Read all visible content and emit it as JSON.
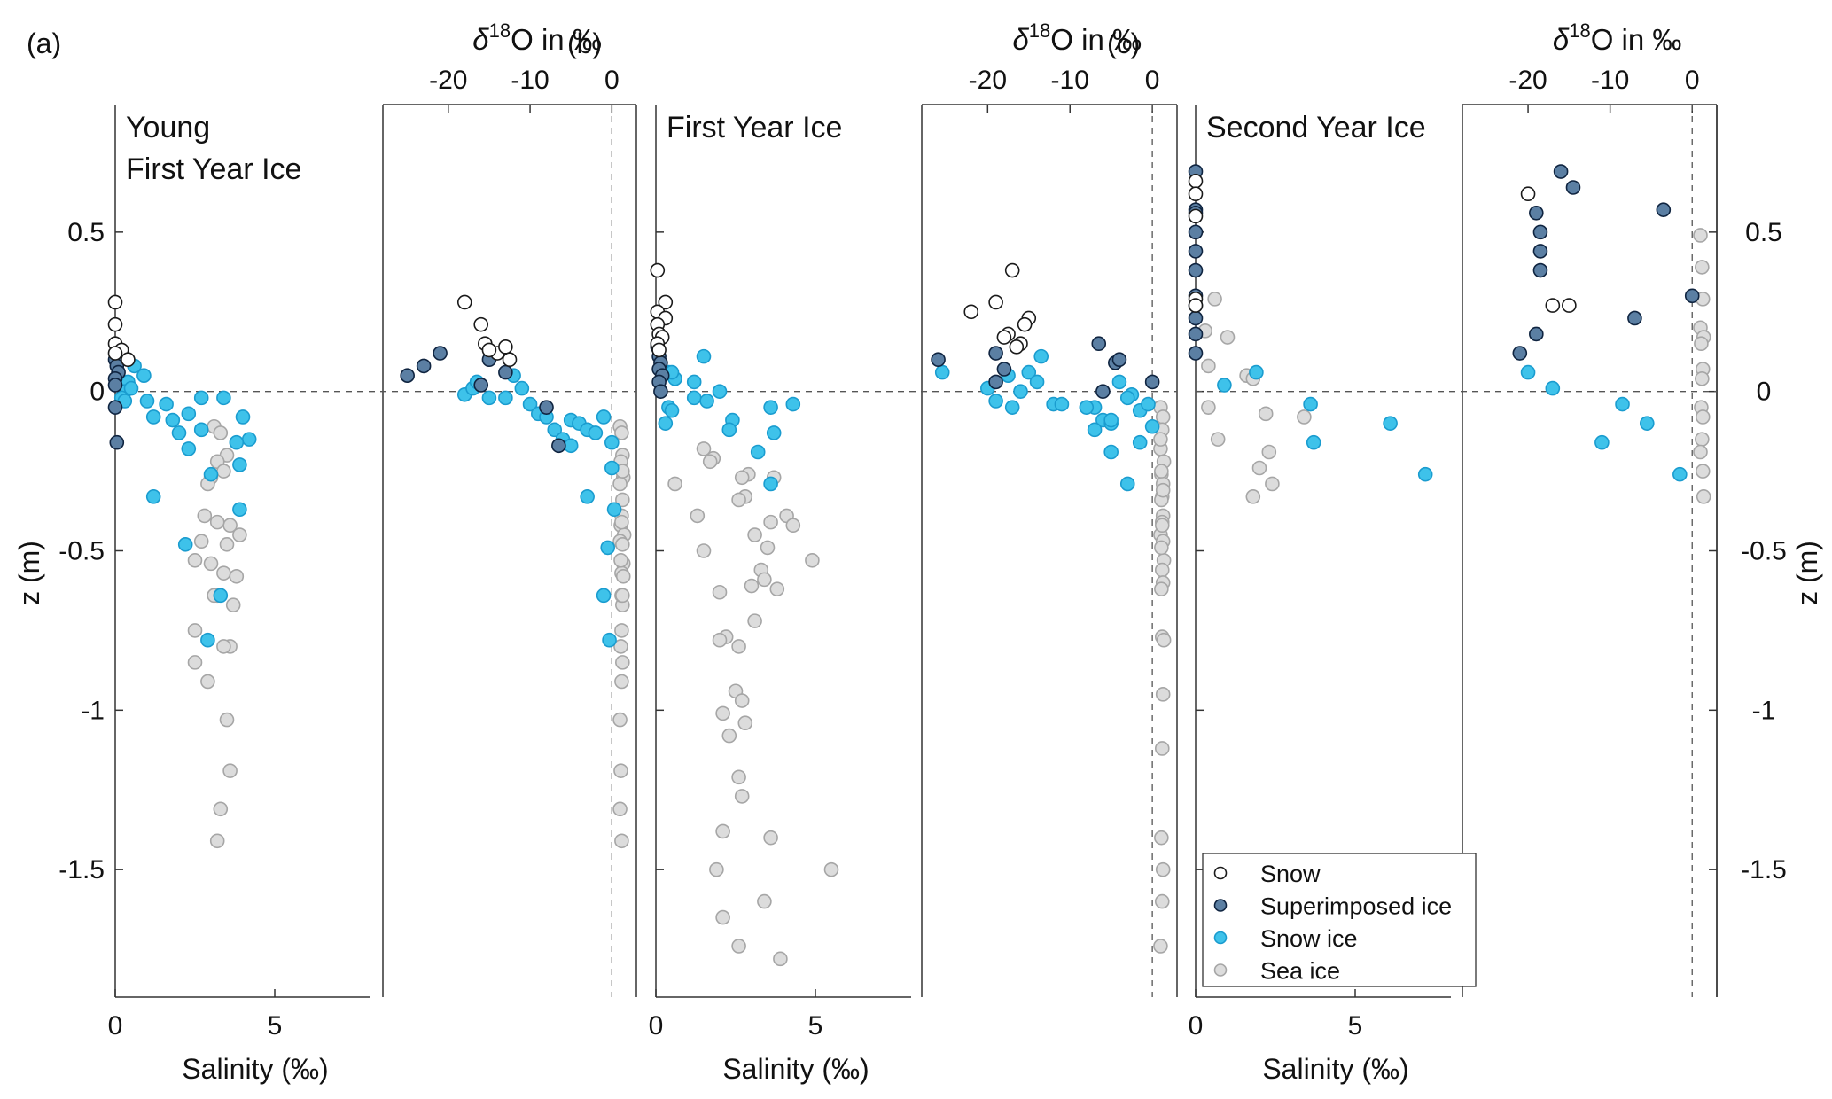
{
  "figure": {
    "colors": {
      "Snow": "#ffffff",
      "Superimposed ice": "#5b7fa3",
      "Snow ice": "#3ec2ea",
      "Sea ice": "#dcdcdc",
      "marker_edge_snow": "#1a1a1a",
      "marker_edge_sup": "#0f2440",
      "marker_edge_snowice": "#1a9ccf",
      "marker_edge_sea": "#a6a6a6",
      "axis": "#333333",
      "dashed": "#555555"
    },
    "z_axis": {
      "label": "z (m)",
      "range": [
        -1.9,
        0.9
      ],
      "ticks": [
        0.5,
        0,
        -0.5,
        -1,
        -1.5
      ],
      "tick_labels": [
        "0.5",
        "0",
        "-0.5",
        "-1",
        "-1.5"
      ]
    },
    "salinity_axis": {
      "label": "Salinity (‰)",
      "range": [
        0,
        8
      ],
      "ticks": [
        0,
        5
      ],
      "tick_labels": [
        "0",
        "5"
      ]
    },
    "d18o_axis": {
      "label_prefix": "δ",
      "label_sup": "18",
      "label_suffix": "O in ‰",
      "range": [
        -28,
        3
      ],
      "ticks": [
        -20,
        -10,
        0
      ],
      "tick_labels": [
        "-20",
        "-10",
        "0"
      ]
    },
    "legend": {
      "entries": [
        "Snow",
        "Superimposed ice",
        "Snow ice",
        "Sea ice"
      ]
    }
  },
  "panels": [
    {
      "letter": "(a)",
      "title_lines": [
        "Young",
        "First Year Ice"
      ]
    },
    {
      "letter": "(b)",
      "title_lines": [
        "First Year Ice"
      ]
    },
    {
      "letter": "(c)",
      "title_lines": [
        "Second Year Ice"
      ]
    }
  ],
  "chart_data": [
    {
      "type": "scatter",
      "panel": "(a)",
      "title": "Young First Year Ice",
      "xlabel": "Salinity (‰)",
      "ylabel": "z (m)",
      "xlim": [
        0,
        8
      ],
      "ylim": [
        -1.9,
        0.9
      ],
      "series": [
        {
          "name": "Snow",
          "x": [
            0.0,
            0.0,
            0.0,
            0.2,
            0.4,
            0.0
          ],
          "y": [
            0.28,
            0.21,
            0.15,
            0.13,
            0.1,
            0.12
          ]
        },
        {
          "name": "Superimposed ice",
          "x": [
            0.0,
            0.05,
            0.1,
            0.0,
            0.0,
            0.0,
            0.05
          ],
          "y": [
            0.1,
            0.08,
            0.06,
            0.04,
            0.02,
            -0.05,
            -0.16
          ]
        },
        {
          "name": "Snow ice",
          "x": [
            0.6,
            0.9,
            0.4,
            0.3,
            0.2,
            0.5,
            0.3,
            1.0,
            1.2,
            1.6,
            1.8,
            2.0,
            2.3,
            2.3,
            2.7,
            2.7,
            3.4,
            4.0,
            4.2,
            3.8,
            3.9,
            3.0,
            1.2,
            2.2,
            2.9,
            3.3,
            3.9
          ],
          "y": [
            0.08,
            0.05,
            0.03,
            0.0,
            -0.02,
            0.01,
            -0.03,
            -0.03,
            -0.08,
            -0.04,
            -0.09,
            -0.13,
            -0.07,
            -0.18,
            -0.02,
            -0.12,
            -0.02,
            -0.08,
            -0.15,
            -0.16,
            -0.23,
            -0.26,
            -0.33,
            -0.48,
            -0.78,
            -0.64,
            -0.37
          ]
        },
        {
          "name": "Sea ice",
          "x": [
            3.1,
            3.3,
            3.5,
            3.2,
            3.0,
            2.9,
            3.4,
            2.8,
            3.6,
            3.9,
            3.2,
            2.7,
            3.5,
            3.0,
            3.4,
            3.7,
            2.5,
            3.2,
            3.8,
            3.1,
            2.5,
            3.6,
            2.5,
            2.9,
            3.4,
            3.5,
            3.6,
            3.3,
            3.2
          ],
          "y": [
            -0.11,
            -0.13,
            -0.2,
            -0.22,
            -0.27,
            -0.29,
            -0.25,
            -0.39,
            -0.42,
            -0.45,
            -0.41,
            -0.47,
            -0.48,
            -0.54,
            -0.57,
            -0.67,
            -0.53,
            -0.64,
            -0.58,
            -0.64,
            -0.75,
            -0.8,
            -0.85,
            -0.91,
            -0.8,
            -1.03,
            -1.19,
            -1.31,
            -1.41
          ]
        }
      ]
    },
    {
      "type": "scatter",
      "panel": "(a)",
      "title": "Young First Year Ice",
      "xlabel": "δ18O in ‰",
      "ylabel": "z (m)",
      "xlim": [
        -28,
        3
      ],
      "ylim": [
        -1.9,
        0.9
      ],
      "series": [
        {
          "name": "Snow",
          "x": [
            -18,
            -16,
            -15.5,
            -14,
            -13,
            -12.5,
            -15
          ],
          "y": [
            0.28,
            0.21,
            0.15,
            0.12,
            0.14,
            0.1,
            0.13
          ]
        },
        {
          "name": "Superimposed ice",
          "x": [
            -25,
            -23,
            -21,
            -16,
            -15,
            -13,
            -8,
            -6.5
          ],
          "y": [
            0.05,
            0.08,
            0.12,
            0.02,
            0.1,
            0.06,
            -0.05,
            -0.17
          ]
        },
        {
          "name": "Snow ice",
          "x": [
            -18,
            -17,
            -16.5,
            -15,
            -13,
            -12,
            -11,
            -10,
            -9,
            -8,
            -7,
            -6,
            -5,
            -5,
            -4,
            -3,
            -2,
            -1,
            0,
            0,
            -0.5,
            -3,
            -1,
            0.3,
            -0.3
          ],
          "y": [
            -0.01,
            0.01,
            0.03,
            -0.02,
            -0.02,
            0.05,
            0.01,
            -0.04,
            -0.07,
            -0.08,
            -0.12,
            -0.15,
            -0.17,
            -0.09,
            -0.1,
            -0.12,
            -0.13,
            -0.08,
            -0.16,
            -0.24,
            -0.49,
            -0.33,
            -0.64,
            -0.37,
            -0.78
          ]
        },
        {
          "name": "Sea ice",
          "x": [
            1,
            1.2,
            1.3,
            1.1,
            1.4,
            1,
            1.3,
            1.2,
            1.1,
            1.5,
            1.2,
            1.0,
            1.3,
            1.4,
            1.2,
            1.3,
            1.1,
            1.2,
            1.4,
            1.3,
            1.2,
            1.1,
            1.3,
            1.2,
            1.0,
            1.1,
            1.0,
            1.2,
            1.3
          ],
          "y": [
            -0.11,
            -0.13,
            -0.2,
            -0.22,
            -0.27,
            -0.29,
            -0.25,
            -0.39,
            -0.42,
            -0.45,
            -0.41,
            -0.47,
            -0.48,
            -0.54,
            -0.57,
            -0.67,
            -0.53,
            -0.64,
            -0.58,
            -0.64,
            -0.75,
            -0.8,
            -0.85,
            -0.91,
            -1.03,
            -1.19,
            -1.31,
            -1.41,
            -0.34
          ]
        }
      ]
    },
    {
      "type": "scatter",
      "panel": "(b)",
      "title": "First Year Ice",
      "xlabel": "Salinity (‰)",
      "ylabel": "z (m)",
      "xlim": [
        0,
        8
      ],
      "ylim": [
        -1.9,
        0.9
      ],
      "series": [
        {
          "name": "Snow",
          "x": [
            0.05,
            0.3,
            0.05,
            0.3,
            0.05,
            0.1,
            0.2,
            0.05,
            0.1
          ],
          "y": [
            0.38,
            0.28,
            0.25,
            0.23,
            0.21,
            0.18,
            0.17,
            0.15,
            0.13
          ]
        },
        {
          "name": "Superimposed ice",
          "x": [
            0.05,
            0.1,
            0.15,
            0.1,
            0.2,
            0.1,
            0.15
          ],
          "y": [
            0.14,
            0.11,
            0.09,
            0.07,
            0.05,
            0.03,
            0.0
          ]
        },
        {
          "name": "Snow ice",
          "x": [
            0.4,
            0.6,
            0.5,
            1.2,
            1.5,
            1.2,
            2.0,
            0.4,
            0.5,
            0.3,
            1.6,
            2.4,
            2.3,
            3.6,
            3.2,
            4.3,
            3.6,
            3.7
          ],
          "y": [
            0.06,
            0.04,
            0.06,
            0.03,
            0.11,
            -0.02,
            0.0,
            -0.05,
            -0.06,
            -0.1,
            -0.03,
            -0.09,
            -0.12,
            -0.05,
            -0.19,
            -0.04,
            -0.29,
            -0.13
          ]
        },
        {
          "name": "Sea ice",
          "x": [
            1.5,
            1.8,
            1.7,
            0.6,
            2.9,
            2.7,
            2.8,
            3.7,
            2.6,
            1.3,
            3.6,
            4.1,
            4.3,
            3.1,
            1.5,
            3.5,
            3.3,
            4.9,
            3.4,
            3.0,
            3.8,
            2.0,
            3.1,
            2.2,
            2.0,
            2.6,
            2.5,
            2.7,
            2.8,
            2.1,
            2.3,
            2.6,
            2.7,
            2.1,
            3.6,
            1.9,
            5.5,
            3.4,
            2.1,
            2.6,
            3.9
          ],
          "y": [
            -0.18,
            -0.21,
            -0.22,
            -0.29,
            -0.26,
            -0.27,
            -0.33,
            -0.27,
            -0.34,
            -0.39,
            -0.41,
            -0.39,
            -0.42,
            -0.45,
            -0.5,
            -0.49,
            -0.56,
            -0.53,
            -0.59,
            -0.61,
            -0.62,
            -0.63,
            -0.72,
            -0.77,
            -0.78,
            -0.8,
            -0.94,
            -0.97,
            -1.04,
            -1.01,
            -1.08,
            -1.21,
            -1.27,
            -1.38,
            -1.4,
            -1.5,
            -1.5,
            -1.6,
            -1.65,
            -1.74,
            -1.78
          ]
        }
      ]
    },
    {
      "type": "scatter",
      "panel": "(b)",
      "title": "First Year Ice",
      "xlabel": "δ18O in ‰",
      "ylabel": "z (m)",
      "xlim": [
        -28,
        3
      ],
      "ylim": [
        -1.9,
        0.9
      ],
      "series": [
        {
          "name": "Snow",
          "x": [
            -17,
            -19,
            -22,
            -15,
            -15.5,
            -17.5,
            -18,
            -16,
            -16.5
          ],
          "y": [
            0.38,
            0.28,
            0.25,
            0.23,
            0.21,
            0.18,
            0.17,
            0.15,
            0.14
          ]
        },
        {
          "name": "Superimposed ice",
          "x": [
            -26,
            -19,
            -18,
            -19,
            -6.5,
            -4.5,
            -4,
            -6,
            0
          ],
          "y": [
            0.1,
            0.12,
            0.07,
            0.03,
            0.15,
            0.09,
            0.1,
            0.0,
            0.03
          ]
        },
        {
          "name": "Snow ice",
          "x": [
            -25.5,
            -20,
            -17.5,
            -16,
            -15,
            -14,
            -13.5,
            -12,
            -7,
            -6,
            -5,
            -4,
            -2.5,
            -1.5,
            -0.5,
            0,
            -19,
            -17,
            -11,
            -7,
            -8,
            -5,
            -3,
            -1.5,
            -5,
            -3
          ],
          "y": [
            0.06,
            0.01,
            0.05,
            0.0,
            0.06,
            0.03,
            0.11,
            -0.04,
            -0.05,
            -0.09,
            -0.1,
            0.03,
            -0.01,
            -0.06,
            -0.04,
            -0.11,
            -0.03,
            -0.05,
            -0.04,
            -0.12,
            -0.05,
            -0.19,
            -0.29,
            -0.16,
            -0.09,
            -0.02
          ]
        },
        {
          "name": "Sea ice",
          "x": [
            1,
            1.3,
            1.2,
            1.0,
            1.4,
            1.1,
            1.3,
            1.2,
            1.1,
            1.3,
            1.2,
            1.0,
            1.3,
            1.4,
            1.2,
            1.3,
            1.1,
            1.2,
            1.4,
            1.3,
            1.2,
            1.1,
            1.3,
            1.2,
            1.0,
            1.1,
            1.0,
            1.2,
            1.3,
            1.1
          ],
          "y": [
            -0.05,
            -0.08,
            -0.12,
            -0.18,
            -0.22,
            -0.26,
            -0.29,
            -0.33,
            -0.34,
            -0.39,
            -0.41,
            -0.45,
            -0.47,
            -0.53,
            -0.56,
            -0.6,
            -0.62,
            -0.77,
            -0.78,
            -0.95,
            -1.12,
            -1.4,
            -1.5,
            -1.6,
            -1.74,
            -0.25,
            -0.15,
            -0.42,
            -0.31,
            -0.49
          ]
        }
      ]
    },
    {
      "type": "scatter",
      "panel": "(c)",
      "title": "Second Year Ice",
      "xlabel": "Salinity (‰)",
      "ylabel": "z (m)",
      "xlim": [
        0,
        8
      ],
      "ylim": [
        -1.9,
        0.9
      ],
      "series": [
        {
          "name": "Snow",
          "x": [
            0.0,
            0.0,
            0.0,
            0.0,
            0.0
          ],
          "y": [
            0.66,
            0.62,
            0.55,
            0.29,
            0.27
          ]
        },
        {
          "name": "Superimposed ice",
          "x": [
            0.0,
            0.0,
            0.0,
            0.0,
            0.0,
            0.0,
            0.0,
            0.0,
            0.0,
            0.0,
            0.0
          ],
          "y": [
            0.69,
            0.57,
            0.56,
            0.5,
            0.44,
            0.38,
            0.3,
            0.23,
            0.18,
            0.12,
            0.27
          ]
        },
        {
          "name": "Snow ice",
          "x": [
            0.9,
            1.9,
            3.6,
            3.7,
            6.1,
            7.2
          ],
          "y": [
            0.02,
            0.06,
            -0.04,
            -0.16,
            -0.1,
            -0.26
          ]
        },
        {
          "name": "Sea ice",
          "x": [
            0.6,
            1.0,
            0.3,
            0.4,
            1.6,
            1.8,
            0.4,
            0.7,
            2.2,
            3.4,
            2.3,
            2.0,
            2.4,
            1.8
          ],
          "y": [
            0.29,
            0.17,
            0.19,
            0.08,
            0.05,
            0.04,
            -0.05,
            -0.15,
            -0.07,
            -0.08,
            -0.19,
            -0.24,
            -0.29,
            -0.33
          ]
        }
      ]
    },
    {
      "type": "scatter",
      "panel": "(c)",
      "title": "Second Year Ice",
      "xlabel": "δ18O in ‰",
      "ylabel": "z (m)",
      "xlim": [
        -28,
        3
      ],
      "ylim": [
        -1.9,
        0.9
      ],
      "series": [
        {
          "name": "Snow",
          "x": [
            -20,
            -17,
            -15
          ],
          "y": [
            0.62,
            0.27,
            0.27
          ]
        },
        {
          "name": "Superimposed ice",
          "x": [
            -16,
            -14.5,
            -19,
            -18.5,
            -18.5,
            -18.5,
            -3.5,
            0,
            -7,
            -19,
            -21
          ],
          "y": [
            0.69,
            0.64,
            0.56,
            0.5,
            0.44,
            0.38,
            0.57,
            0.3,
            0.23,
            0.18,
            0.12
          ]
        },
        {
          "name": "Snow ice",
          "x": [
            -20,
            -17,
            -8.5,
            -11,
            -5.5,
            -1.5
          ],
          "y": [
            0.06,
            0.01,
            -0.04,
            -0.16,
            -0.1,
            -0.26
          ]
        },
        {
          "name": "Sea ice",
          "x": [
            1,
            1.2,
            1.3,
            1.0,
            1.4,
            1.1,
            1.3,
            1.2,
            1.1,
            1.3,
            1.2,
            1.0,
            1.3,
            1.4
          ],
          "y": [
            0.49,
            0.39,
            0.29,
            0.2,
            0.17,
            0.15,
            0.07,
            0.04,
            -0.05,
            -0.08,
            -0.15,
            -0.19,
            -0.25,
            -0.33
          ]
        }
      ]
    }
  ]
}
